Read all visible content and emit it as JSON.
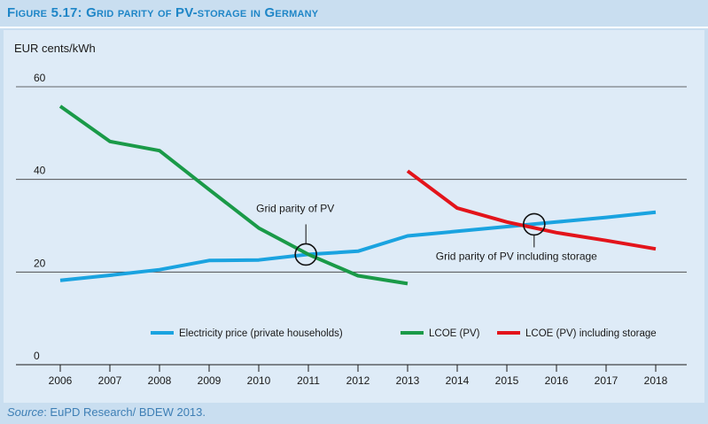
{
  "figure": {
    "title": "Figure 5.17: Grid parity of PV-storage in Germany",
    "source_label": "Source",
    "source_text": ": EuPD Research/ BDEW 2013."
  },
  "chart_data": {
    "type": "line",
    "title": "Figure 5.17: Grid parity of PV-storage in Germany",
    "ylabel": "EUR cents/kWh",
    "xlabel": "",
    "ylim": [
      0,
      60
    ],
    "xlim": [
      2006,
      2018
    ],
    "yticks": [
      0,
      20,
      40,
      60
    ],
    "xticks": [
      "2006",
      "2007",
      "2008",
      "2009",
      "2010",
      "2011",
      "2012",
      "2013",
      "2014",
      "2015",
      "2016",
      "2017",
      "2018"
    ],
    "grid": "horizontal",
    "legend_placement": "bottom",
    "series": [
      {
        "name": "Electricity price (private households)",
        "color": "#1aa3e0",
        "points": [
          [
            2006,
            18.2
          ],
          [
            2007,
            19.3
          ],
          [
            2008,
            20.5
          ],
          [
            2009,
            22.5
          ],
          [
            2010,
            22.6
          ],
          [
            2011,
            23.8
          ],
          [
            2012,
            24.5
          ],
          [
            2013,
            27.8
          ],
          [
            2014,
            28.8
          ],
          [
            2015,
            29.8
          ],
          [
            2016,
            30.8
          ],
          [
            2017,
            31.8
          ],
          [
            2018,
            32.9
          ]
        ]
      },
      {
        "name": "LCOE (PV)",
        "color": "#1a9a48",
        "points": [
          [
            2006,
            55.8
          ],
          [
            2007,
            48.2
          ],
          [
            2008,
            46.2
          ],
          [
            2009,
            37.8
          ],
          [
            2010,
            29.5
          ],
          [
            2011,
            23.8
          ],
          [
            2012,
            19.2
          ],
          [
            2013,
            17.5
          ]
        ]
      },
      {
        "name": "LCOE (PV) including storage",
        "color": "#e3141b",
        "points": [
          [
            2013,
            41.8
          ],
          [
            2014,
            33.8
          ],
          [
            2015,
            30.8
          ],
          [
            2016,
            28.5
          ],
          [
            2017,
            26.8
          ],
          [
            2018,
            25.0
          ]
        ]
      }
    ],
    "annotations": [
      {
        "text": "Grid parity of PV",
        "x": 2010.95,
        "y": 23.8,
        "label_side": "above"
      },
      {
        "text": "Grid parity of PV including storage",
        "x": 2015.55,
        "y": 30.3,
        "label_side": "below"
      }
    ]
  }
}
